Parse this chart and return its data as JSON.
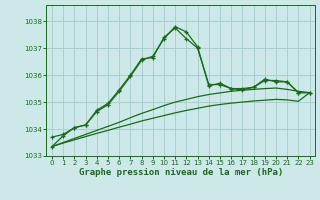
{
  "title": "Graphe pression niveau de la mer (hPa)",
  "bg_color": "#cce8e8",
  "grid_color": "#aacfcf",
  "line_color": "#1a6b1a",
  "xlim": [
    -0.5,
    23.5
  ],
  "ylim": [
    1033.0,
    1038.6
  ],
  "yticks": [
    1033,
    1034,
    1035,
    1036,
    1037,
    1038
  ],
  "xticks": [
    0,
    1,
    2,
    3,
    4,
    5,
    6,
    7,
    8,
    9,
    10,
    11,
    12,
    13,
    14,
    15,
    16,
    17,
    18,
    19,
    20,
    21,
    22,
    23
  ],
  "s1_x": [
    0,
    1,
    2,
    3,
    4,
    5,
    6,
    7,
    8,
    9,
    10,
    11,
    12,
    13,
    14,
    15,
    16,
    17,
    18,
    19,
    20,
    21,
    22,
    23
  ],
  "s1_y": [
    1033.35,
    1033.75,
    1034.05,
    1034.15,
    1034.65,
    1034.9,
    1035.4,
    1035.95,
    1036.55,
    1036.7,
    1037.35,
    1037.8,
    1037.6,
    1037.05,
    1035.6,
    1035.7,
    1035.5,
    1035.45,
    1035.55,
    1035.8,
    1035.8,
    1035.75,
    1035.35,
    1035.35
  ],
  "s2_x": [
    0,
    1,
    2,
    3,
    4,
    5,
    6,
    7,
    8,
    9,
    10,
    11,
    12,
    13,
    14,
    15,
    16,
    17,
    18,
    19,
    20,
    21,
    22,
    23
  ],
  "s2_y": [
    1033.7,
    1033.8,
    1034.05,
    1034.15,
    1034.7,
    1034.95,
    1035.45,
    1036.0,
    1036.6,
    1036.65,
    1037.4,
    1037.75,
    1037.35,
    1037.0,
    1035.65,
    1035.65,
    1035.5,
    1035.5,
    1035.55,
    1035.85,
    1035.75,
    1035.75,
    1035.35,
    1035.35
  ],
  "s3_x": [
    0,
    1,
    2,
    3,
    4,
    5,
    6,
    7,
    8,
    9,
    10,
    11,
    12,
    13,
    14,
    15,
    16,
    17,
    18,
    19,
    20,
    21,
    22,
    23
  ],
  "s3_y": [
    1033.35,
    1033.5,
    1033.65,
    1033.8,
    1033.95,
    1034.1,
    1034.25,
    1034.42,
    1034.58,
    1034.72,
    1034.87,
    1035.0,
    1035.1,
    1035.2,
    1035.28,
    1035.34,
    1035.4,
    1035.44,
    1035.47,
    1035.5,
    1035.52,
    1035.47,
    1035.4,
    1035.35
  ],
  "s4_x": [
    0,
    1,
    2,
    3,
    4,
    5,
    6,
    7,
    8,
    9,
    10,
    11,
    12,
    13,
    14,
    15,
    16,
    17,
    18,
    19,
    20,
    21,
    22,
    23
  ],
  "s4_y": [
    1033.35,
    1033.48,
    1033.6,
    1033.72,
    1033.84,
    1033.95,
    1034.07,
    1034.18,
    1034.3,
    1034.4,
    1034.5,
    1034.6,
    1034.69,
    1034.77,
    1034.85,
    1034.91,
    1034.96,
    1035.0,
    1035.04,
    1035.07,
    1035.1,
    1035.08,
    1035.03,
    1035.35
  ]
}
